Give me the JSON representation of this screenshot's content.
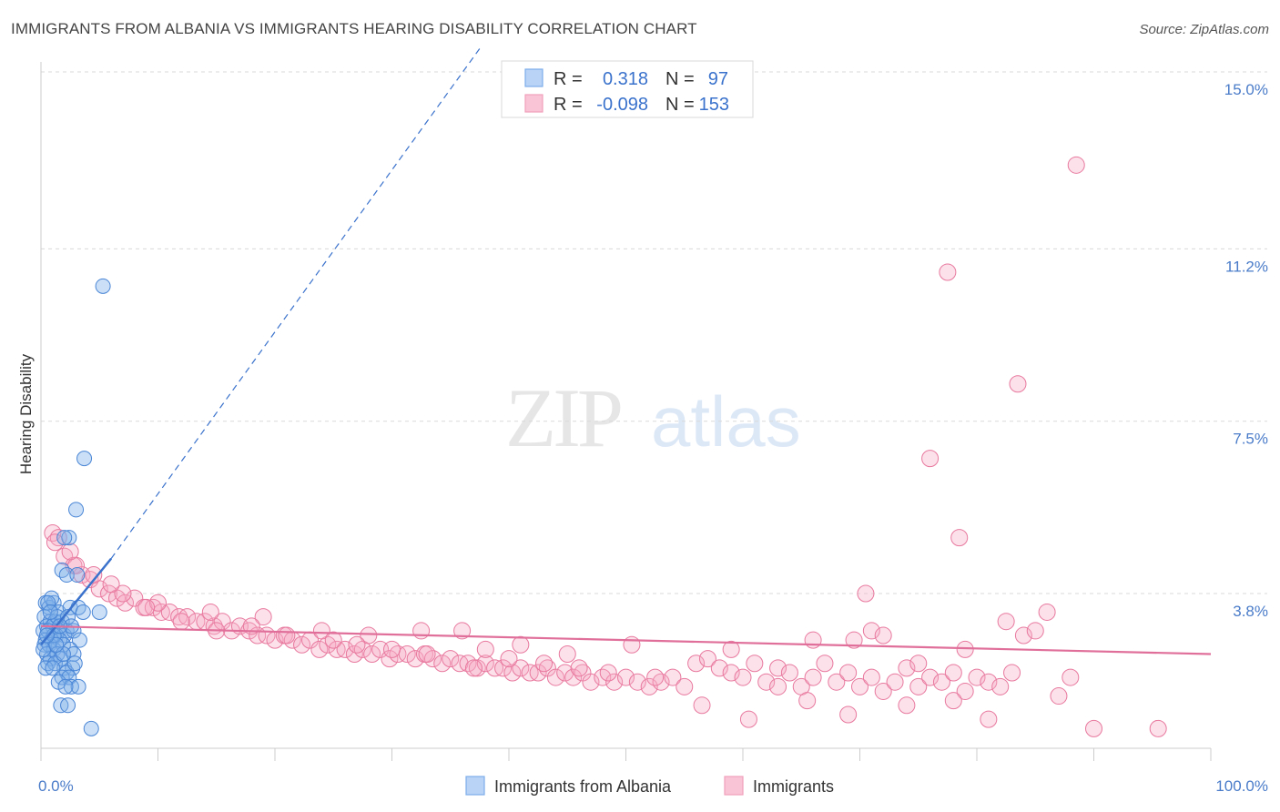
{
  "chart_data": {
    "type": "scatter",
    "title": "IMMIGRANTS FROM ALBANIA VS IMMIGRANTS HEARING DISABILITY CORRELATION CHART",
    "source": "Source: ZipAtlas.com",
    "watermark": "ZIPatlas",
    "ylabel": "Hearing Disability",
    "xlabel": "",
    "xlim": [
      0,
      100
    ],
    "ylim": [
      0,
      15.5
    ],
    "x_tick_labels": [
      "0.0%",
      "100.0%"
    ],
    "y_ticks": [
      {
        "value": 15.0,
        "label": "15.0%"
      },
      {
        "value": 11.2,
        "label": "11.2%"
      },
      {
        "value": 7.5,
        "label": "7.5%"
      },
      {
        "value": 3.8,
        "label": "3.8%"
      }
    ],
    "legend": [
      {
        "series": "Immigrants from Albania",
        "r_label": "R =",
        "r": "0.318",
        "n_label": "N =",
        "n": "97"
      },
      {
        "series": "Immigrants",
        "r_label": "R =",
        "r": "-0.098",
        "n_label": "N =",
        "n": "153"
      }
    ],
    "series": [
      {
        "name": "Immigrants from Albania",
        "color": "#7eaee8",
        "stroke": "#4a86d6",
        "trend": {
          "x0": 0.0,
          "y0": 2.7,
          "x1": 6.0,
          "y1": 4.55,
          "dash_to_x": 37.5,
          "dash_to_y": 15.5,
          "color": "#3a72cc"
        },
        "points": [
          [
            5.3,
            10.4
          ],
          [
            3.7,
            6.7
          ],
          [
            3.0,
            5.6
          ],
          [
            2.4,
            5.0
          ],
          [
            2.0,
            5.0
          ],
          [
            1.8,
            4.3
          ],
          [
            2.2,
            4.2
          ],
          [
            3.1,
            4.2
          ],
          [
            0.4,
            3.6
          ],
          [
            0.7,
            3.5
          ],
          [
            1.1,
            3.6
          ],
          [
            1.5,
            3.4
          ],
          [
            2.5,
            3.5
          ],
          [
            3.2,
            3.5
          ],
          [
            5.0,
            3.4
          ],
          [
            3.6,
            3.4
          ],
          [
            0.3,
            3.3
          ],
          [
            0.8,
            3.2
          ],
          [
            1.2,
            3.2
          ],
          [
            1.8,
            3.2
          ],
          [
            0.5,
            3.1
          ],
          [
            1.0,
            3.1
          ],
          [
            1.5,
            3.0
          ],
          [
            2.2,
            3.0
          ],
          [
            0.2,
            3.0
          ],
          [
            0.6,
            3.0
          ],
          [
            1.3,
            2.9
          ],
          [
            2.0,
            2.9
          ],
          [
            2.8,
            3.0
          ],
          [
            0.4,
            2.8
          ],
          [
            0.9,
            2.8
          ],
          [
            1.6,
            2.8
          ],
          [
            3.3,
            2.8
          ],
          [
            0.3,
            2.7
          ],
          [
            0.7,
            2.7
          ],
          [
            1.1,
            2.6
          ],
          [
            1.9,
            2.7
          ],
          [
            2.5,
            2.6
          ],
          [
            0.5,
            2.5
          ],
          [
            1.4,
            2.5
          ],
          [
            0.8,
            2.4
          ],
          [
            1.7,
            2.4
          ],
          [
            2.8,
            2.5
          ],
          [
            0.6,
            2.3
          ],
          [
            1.2,
            2.3
          ],
          [
            2.0,
            2.2
          ],
          [
            2.7,
            2.2
          ],
          [
            0.4,
            2.2
          ],
          [
            1.0,
            2.2
          ],
          [
            2.2,
            2.1
          ],
          [
            1.8,
            2.0
          ],
          [
            2.4,
            2.0
          ],
          [
            1.5,
            1.9
          ],
          [
            2.6,
            1.8
          ],
          [
            3.2,
            1.8
          ],
          [
            2.1,
            1.8
          ],
          [
            1.7,
            1.4
          ],
          [
            2.3,
            1.4
          ],
          [
            4.3,
            0.9
          ],
          [
            0.9,
            3.7
          ],
          [
            0.6,
            3.6
          ],
          [
            1.4,
            3.3
          ],
          [
            2.3,
            3.3
          ],
          [
            1.1,
            2.9
          ],
          [
            0.2,
            2.6
          ],
          [
            1.9,
            2.5
          ],
          [
            2.9,
            2.3
          ],
          [
            1.3,
            2.7
          ],
          [
            0.8,
            3.4
          ],
          [
            2.6,
            3.1
          ],
          [
            0.5,
            2.9
          ],
          [
            1.6,
            3.1
          ]
        ]
      },
      {
        "name": "Immigrants",
        "color": "#f5aac4",
        "stroke": "#e8799f",
        "trend": {
          "x0": 0.0,
          "y0": 3.1,
          "x1": 100.0,
          "y1": 2.5,
          "color": "#e0709a"
        },
        "points": [
          [
            88.5,
            13.0
          ],
          [
            77.5,
            10.7
          ],
          [
            83.5,
            8.3
          ],
          [
            76.0,
            6.7
          ],
          [
            78.5,
            5.0
          ],
          [
            1.0,
            5.1
          ],
          [
            1.5,
            5.0
          ],
          [
            2.0,
            4.6
          ],
          [
            2.8,
            4.4
          ],
          [
            3.5,
            4.2
          ],
          [
            4.2,
            4.1
          ],
          [
            5.0,
            3.9
          ],
          [
            5.8,
            3.8
          ],
          [
            6.5,
            3.7
          ],
          [
            7.2,
            3.6
          ],
          [
            8.0,
            3.7
          ],
          [
            8.8,
            3.5
          ],
          [
            9.6,
            3.5
          ],
          [
            10.3,
            3.4
          ],
          [
            11.0,
            3.4
          ],
          [
            11.8,
            3.3
          ],
          [
            12.5,
            3.3
          ],
          [
            13.3,
            3.2
          ],
          [
            14.0,
            3.2
          ],
          [
            14.8,
            3.1
          ],
          [
            15.5,
            3.2
          ],
          [
            16.3,
            3.0
          ],
          [
            17.0,
            3.1
          ],
          [
            17.8,
            3.0
          ],
          [
            18.5,
            2.9
          ],
          [
            19.3,
            2.9
          ],
          [
            20.0,
            2.8
          ],
          [
            20.8,
            2.9
          ],
          [
            21.5,
            2.8
          ],
          [
            22.3,
            2.7
          ],
          [
            23.0,
            2.8
          ],
          [
            23.8,
            2.6
          ],
          [
            24.5,
            2.7
          ],
          [
            25.3,
            2.6
          ],
          [
            26.0,
            2.6
          ],
          [
            26.8,
            2.5
          ],
          [
            27.5,
            2.6
          ],
          [
            28.3,
            2.5
          ],
          [
            29.0,
            2.6
          ],
          [
            29.8,
            2.4
          ],
          [
            30.5,
            2.5
          ],
          [
            31.3,
            2.5
          ],
          [
            32.0,
            2.4
          ],
          [
            32.8,
            2.5
          ],
          [
            33.5,
            2.4
          ],
          [
            34.3,
            2.3
          ],
          [
            35.0,
            2.4
          ],
          [
            35.8,
            2.3
          ],
          [
            36.5,
            2.3
          ],
          [
            37.3,
            2.2
          ],
          [
            38.0,
            2.3
          ],
          [
            38.8,
            2.2
          ],
          [
            39.5,
            2.2
          ],
          [
            40.3,
            2.1
          ],
          [
            41.0,
            2.2
          ],
          [
            41.8,
            2.1
          ],
          [
            42.5,
            2.1
          ],
          [
            43.3,
            2.2
          ],
          [
            44.0,
            2.0
          ],
          [
            44.8,
            2.1
          ],
          [
            45.5,
            2.0
          ],
          [
            46.3,
            2.1
          ],
          [
            47.0,
            1.9
          ],
          [
            48.0,
            2.0
          ],
          [
            49.0,
            1.9
          ],
          [
            50.0,
            2.0
          ],
          [
            51.0,
            1.9
          ],
          [
            52.0,
            1.8
          ],
          [
            53.0,
            1.9
          ],
          [
            54.0,
            2.0
          ],
          [
            55.0,
            1.8
          ],
          [
            56.0,
            2.3
          ],
          [
            57.0,
            2.4
          ],
          [
            58.0,
            2.2
          ],
          [
            59.0,
            2.1
          ],
          [
            60.0,
            2.0
          ],
          [
            61.0,
            2.3
          ],
          [
            62.0,
            1.9
          ],
          [
            63.0,
            2.2
          ],
          [
            64.0,
            2.1
          ],
          [
            65.0,
            1.8
          ],
          [
            66.0,
            2.0
          ],
          [
            67.0,
            2.3
          ],
          [
            68.0,
            1.9
          ],
          [
            69.0,
            2.1
          ],
          [
            70.0,
            1.8
          ],
          [
            71.0,
            2.0
          ],
          [
            72.0,
            1.7
          ],
          [
            73.0,
            1.9
          ],
          [
            74.0,
            2.2
          ],
          [
            75.0,
            1.8
          ],
          [
            76.0,
            2.0
          ],
          [
            77.0,
            1.9
          ],
          [
            78.0,
            2.1
          ],
          [
            79.0,
            1.7
          ],
          [
            80.0,
            2.0
          ],
          [
            81.0,
            1.9
          ],
          [
            82.0,
            1.8
          ],
          [
            83.0,
            2.1
          ],
          [
            70.5,
            3.8
          ],
          [
            69.5,
            2.8
          ],
          [
            71.0,
            3.0
          ],
          [
            72.0,
            2.9
          ],
          [
            60.5,
            1.1
          ],
          [
            65.5,
            1.5
          ],
          [
            69.0,
            1.2
          ],
          [
            74.0,
            1.4
          ],
          [
            78.0,
            1.5
          ],
          [
            56.5,
            1.4
          ],
          [
            63.0,
            1.8
          ],
          [
            81.0,
            1.1
          ],
          [
            90.0,
            0.9
          ],
          [
            75.0,
            2.3
          ],
          [
            79.0,
            2.6
          ],
          [
            82.5,
            3.2
          ],
          [
            84.0,
            2.9
          ],
          [
            85.0,
            3.0
          ],
          [
            86.0,
            3.4
          ],
          [
            87.0,
            1.6
          ],
          [
            88.0,
            2.0
          ],
          [
            95.5,
            0.9
          ],
          [
            66.0,
            2.8
          ],
          [
            59.0,
            2.6
          ],
          [
            50.5,
            2.7
          ],
          [
            45.0,
            2.5
          ],
          [
            41.0,
            2.7
          ],
          [
            38.0,
            2.6
          ],
          [
            36.0,
            3.0
          ],
          [
            32.5,
            3.0
          ],
          [
            28.0,
            2.9
          ],
          [
            24.0,
            3.0
          ],
          [
            19.0,
            3.3
          ],
          [
            14.5,
            3.4
          ],
          [
            10.0,
            3.6
          ],
          [
            7.0,
            3.8
          ],
          [
            6.0,
            4.0
          ],
          [
            4.5,
            4.2
          ],
          [
            3.0,
            4.4
          ],
          [
            2.5,
            4.7
          ],
          [
            1.2,
            4.9
          ],
          [
            9.0,
            3.5
          ],
          [
            12.0,
            3.2
          ],
          [
            15.0,
            3.0
          ],
          [
            18.0,
            3.1
          ],
          [
            21.0,
            2.9
          ],
          [
            25.0,
            2.8
          ],
          [
            27.0,
            2.7
          ],
          [
            30.0,
            2.6
          ],
          [
            33.0,
            2.5
          ],
          [
            37.0,
            2.2
          ],
          [
            40.0,
            2.4
          ],
          [
            43.0,
            2.3
          ],
          [
            46.0,
            2.2
          ],
          [
            48.5,
            2.1
          ],
          [
            52.5,
            2.0
          ]
        ]
      }
    ]
  }
}
